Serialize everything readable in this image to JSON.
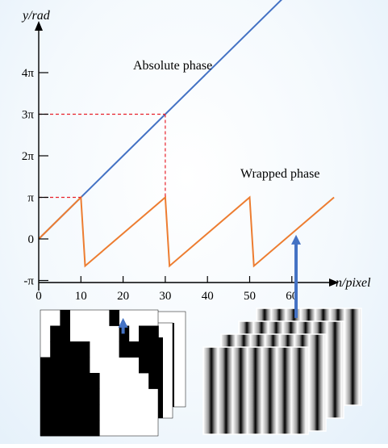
{
  "axes": {
    "y_title": "y/rad",
    "x_title": "n/pixel",
    "y_ticks": [
      {
        "label": "-π",
        "value": -1
      },
      {
        "label": "0",
        "value": 0
      },
      {
        "label": "π",
        "value": 1
      },
      {
        "label": "2π",
        "value": 2
      },
      {
        "label": "3π",
        "value": 3
      },
      {
        "label": "4π",
        "value": 4
      }
    ],
    "x_ticks": [
      {
        "label": "0",
        "value": 0
      },
      {
        "label": "10",
        "value": 10
      },
      {
        "label": "20",
        "value": 20
      },
      {
        "label": "30",
        "value": 30
      },
      {
        "label": "40",
        "value": 40
      },
      {
        "label": "50",
        "value": 50
      },
      {
        "label": "60",
        "value": 60
      }
    ]
  },
  "curves": {
    "absolute": {
      "label": "Absolute phase",
      "color": "#4472c4",
      "points": [
        [
          0,
          0
        ],
        [
          61,
          6.1
        ]
      ]
    },
    "wrapped": {
      "label": "Wrapped phase",
      "color": "#ed7d31",
      "points": [
        [
          0,
          0
        ],
        [
          10,
          1
        ],
        [
          11,
          -0.65
        ],
        [
          30,
          1
        ],
        [
          31,
          -0.65
        ],
        [
          50,
          1
        ],
        [
          51,
          -0.65
        ],
        [
          70,
          1
        ]
      ]
    }
  },
  "reference_lines": {
    "color": "#e8202a",
    "segments": [
      [
        [
          0,
          1
        ],
        [
          10,
          1
        ]
      ],
      [
        [
          0,
          3
        ],
        [
          30,
          3
        ]
      ],
      [
        [
          30,
          3
        ],
        [
          30,
          1
        ]
      ]
    ]
  },
  "pointer_color": "#4472c4",
  "pointers": [
    {
      "from": [
        20,
        -2.28
      ],
      "to": [
        20,
        -1.9
      ]
    },
    {
      "from": [
        61,
        -1.9
      ],
      "to": [
        61,
        0.1
      ]
    }
  ]
}
